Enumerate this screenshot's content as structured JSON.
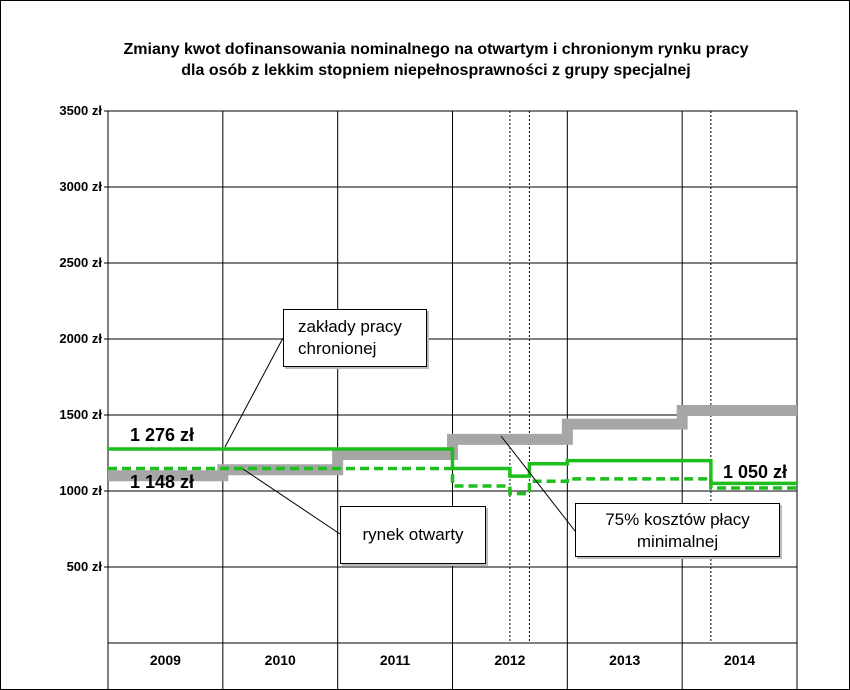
{
  "chart_data": {
    "type": "line",
    "title": "Zmiany kwot dofinansowania nominalnego na otwartym i chronionym rynku pracy dla osób z lekkim stopniem niepełnosprawności z grupy specjalnej",
    "title_lines": [
      "Zmiany kwot dofinansowania nominalnego na otwartym i chronionym rynku pracy",
      "dla osób z lekkim stopniem niepełnosprawności z grupy specjalnej"
    ],
    "categories": [
      "2009",
      "2010",
      "2011",
      "2012",
      "2013",
      "2014"
    ],
    "y_ticks": [
      500,
      1000,
      1500,
      2000,
      2500,
      3000,
      3500
    ],
    "y_tick_labels": [
      "500 zł",
      "1000 zł",
      "1500 zł",
      "2000 zł",
      "2500 zł",
      "3000 zł",
      "3500 zł"
    ],
    "ylim": [
      0,
      3500
    ],
    "xlim": [
      2009,
      2015
    ],
    "grid": true,
    "period_boundaries": [
      2012.5,
      2012.67,
      2014.25
    ],
    "series": [
      {
        "name": "zakłady pracy chronionej",
        "style": "solid",
        "color": "#1fbe1f",
        "steps": [
          {
            "from": 2009,
            "to": 2012,
            "value": 1276
          },
          {
            "from": 2012,
            "to": 2012.5,
            "value": 1148
          },
          {
            "from": 2012.5,
            "to": 2012.67,
            "value": 1098
          },
          {
            "from": 2012.67,
            "to": 2013,
            "value": 1179
          },
          {
            "from": 2013,
            "to": 2014.25,
            "value": 1200
          },
          {
            "from": 2014.25,
            "to": 2015,
            "value": 1050
          }
        ]
      },
      {
        "name": "rynek otwarty",
        "style": "dashed",
        "color": "#1fbe1f",
        "steps": [
          {
            "from": 2009,
            "to": 2012,
            "value": 1148
          },
          {
            "from": 2012,
            "to": 2012.5,
            "value": 1033
          },
          {
            "from": 2012.5,
            "to": 2012.67,
            "value": 983
          },
          {
            "from": 2012.67,
            "to": 2013,
            "value": 1064
          },
          {
            "from": 2013,
            "to": 2014.25,
            "value": 1080
          },
          {
            "from": 2014.25,
            "to": 2015,
            "value": 1020
          }
        ]
      },
      {
        "name": "75% kosztów płacy minimalnej",
        "style": "solid-thick",
        "color": "#a6a6a6",
        "steps": [
          {
            "from": 2009,
            "to": 2010,
            "value": 1100
          },
          {
            "from": 2010,
            "to": 2011,
            "value": 1140
          },
          {
            "from": 2011,
            "to": 2012,
            "value": 1240
          },
          {
            "from": 2012,
            "to": 2013,
            "value": 1340
          },
          {
            "from": 2013,
            "to": 2014,
            "value": 1440
          },
          {
            "from": 2014,
            "to": 2015,
            "value": 1530
          }
        ]
      }
    ],
    "value_labels": [
      "1 276 zł",
      "1 148 zł",
      "1 050 zł"
    ],
    "callouts": {
      "sheltered": [
        "zakłady pracy",
        "chronionej"
      ],
      "open": "rynek otwarty",
      "min_wage": [
        "75% kosztów płacy",
        "minimalnej"
      ]
    }
  }
}
